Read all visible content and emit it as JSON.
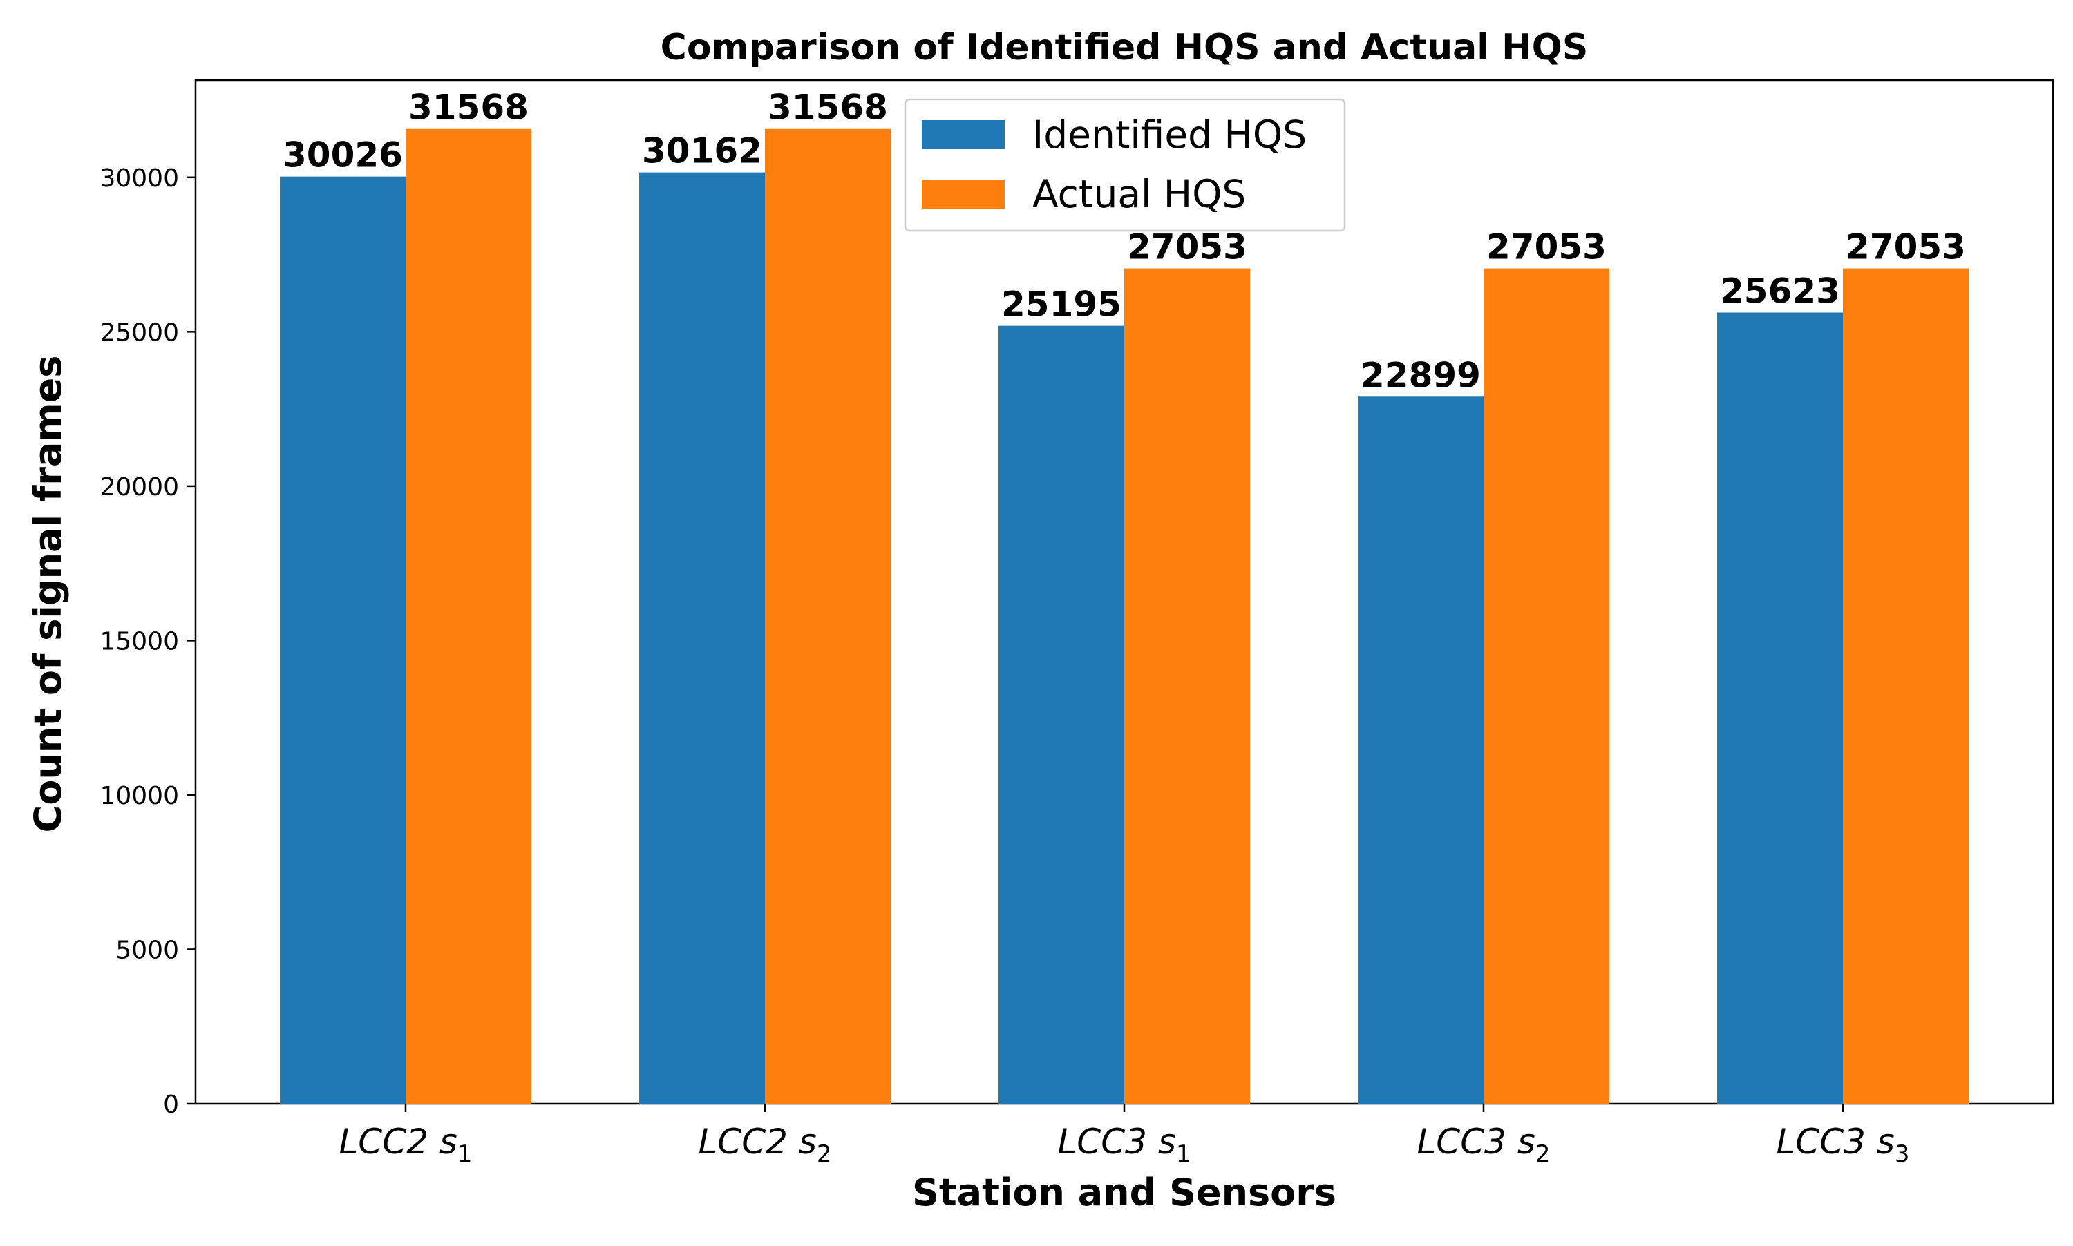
{
  "chart_data": {
    "type": "bar",
    "title": "Comparison of Identified HQS and Actual HQS",
    "xlabel": "Station and Sensors",
    "ylabel": "Count of signal frames",
    "categories": [
      {
        "base": "LCC2 s",
        "sub": "1"
      },
      {
        "base": "LCC2 s",
        "sub": "2"
      },
      {
        "base": "LCC3 s",
        "sub": "1"
      },
      {
        "base": "LCC3 s",
        "sub": "2"
      },
      {
        "base": "LCC3 s",
        "sub": "3"
      }
    ],
    "series": [
      {
        "name": "Identified HQS",
        "color": "#1f77b4",
        "values": [
          30026,
          30162,
          25195,
          22899,
          25623
        ]
      },
      {
        "name": "Actual HQS",
        "color": "#ff7f0e",
        "values": [
          31568,
          31568,
          27053,
          27053,
          27053
        ]
      }
    ],
    "ylim": [
      0,
      33150
    ],
    "yticks": [
      0,
      5000,
      10000,
      15000,
      20000,
      25000,
      30000
    ],
    "grid": false,
    "legend_position": "top-center",
    "data_labels": true
  }
}
